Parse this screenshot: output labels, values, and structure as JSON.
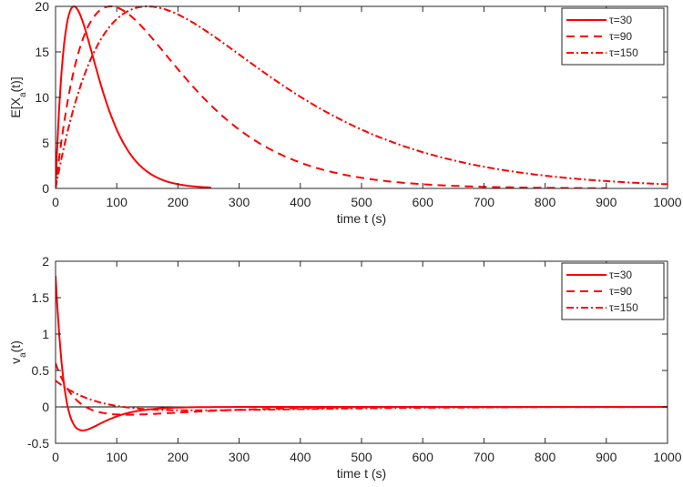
{
  "chart_data": [
    {
      "type": "line",
      "title": "",
      "xlabel": "time t (s)",
      "ylabel": "E[X_a(t)]",
      "xlim": [
        0,
        1000
      ],
      "ylim": [
        0,
        20
      ],
      "xticks": [
        0,
        100,
        200,
        300,
        400,
        500,
        600,
        700,
        800,
        900,
        1000
      ],
      "yticks": [
        0,
        5,
        10,
        15,
        20
      ],
      "grid": false,
      "legend_position": "upper right",
      "series": [
        {
          "name": "τ=30",
          "style": "solid",
          "color": "#ff0000",
          "peak_x": 30,
          "peak_y": 20,
          "x": [
            0,
            10,
            30,
            60,
            100,
            150,
            200,
            250
          ],
          "y": [
            0,
            14,
            20,
            15,
            7,
            2,
            0.5,
            0.1
          ]
        },
        {
          "name": "τ=90",
          "style": "dashed",
          "color": "#ff0000",
          "peak_x": 90,
          "peak_y": 20,
          "x": [
            0,
            30,
            90,
            150,
            200,
            300,
            400,
            500,
            600,
            700,
            800,
            900
          ],
          "y": [
            0,
            14,
            20,
            17.5,
            14,
            7.5,
            3.5,
            1.5,
            0.6,
            0.2,
            0.1,
            0.05
          ]
        },
        {
          "name": "τ=150",
          "style": "dashdot",
          "color": "#ff0000",
          "peak_x": 150,
          "peak_y": 20,
          "x": [
            0,
            50,
            150,
            250,
            300,
            400,
            500,
            600,
            700,
            800,
            900,
            1000
          ],
          "y": [
            0,
            14,
            20,
            18,
            15.5,
            10.5,
            6.7,
            4,
            2.4,
            1.4,
            0.8,
            0.4
          ]
        }
      ]
    },
    {
      "type": "line",
      "title": "",
      "xlabel": "time t (s)",
      "ylabel": "v_a(t)",
      "xlim": [
        0,
        1000
      ],
      "ylim": [
        -0.5,
        2
      ],
      "xticks": [
        0,
        100,
        200,
        300,
        400,
        500,
        600,
        700,
        800,
        900,
        1000
      ],
      "yticks": [
        -0.5,
        0,
        0.5,
        1,
        1.5,
        2
      ],
      "grid": false,
      "legend_position": "upper right",
      "reference_line": {
        "y": 0,
        "color": "#000000"
      },
      "series": [
        {
          "name": "τ=30",
          "style": "solid",
          "color": "#ff0000",
          "x": [
            0,
            10,
            20,
            30,
            45,
            60,
            90,
            130,
            200,
            300,
            1000
          ],
          "y": [
            1.8,
            1.0,
            0.4,
            0.0,
            -0.2,
            -0.25,
            -0.18,
            -0.08,
            -0.03,
            -0.01,
            0
          ]
        },
        {
          "name": "τ=90",
          "style": "dashed",
          "color": "#ff0000",
          "x": [
            0,
            20,
            50,
            90,
            120,
            160,
            250,
            400,
            600,
            1000
          ],
          "y": [
            0.6,
            0.35,
            0.15,
            -0.05,
            -0.08,
            -0.08,
            -0.05,
            -0.02,
            -0.01,
            0
          ]
        },
        {
          "name": "τ=150",
          "style": "dashdot",
          "color": "#ff0000",
          "x": [
            0,
            50,
            100,
            150,
            200,
            300,
            500,
            700,
            1000
          ],
          "y": [
            0.35,
            0.22,
            0.1,
            0.01,
            -0.03,
            -0.05,
            -0.03,
            -0.015,
            0
          ]
        }
      ]
    }
  ],
  "plots": {
    "top": {
      "ylabel": "E[X",
      "ylabel_sub": "a",
      "ylabel_end": "(t)]",
      "xlabel": "time t (s)"
    },
    "bottom": {
      "ylabel": "v",
      "ylabel_sub": "a",
      "ylabel_end": "(t)",
      "xlabel": "time t (s)"
    }
  },
  "legend": [
    {
      "label": "τ=30",
      "style": "solid"
    },
    {
      "label": "τ=90",
      "style": "dashed"
    },
    {
      "label": "τ=150",
      "style": "dashdot"
    }
  ]
}
